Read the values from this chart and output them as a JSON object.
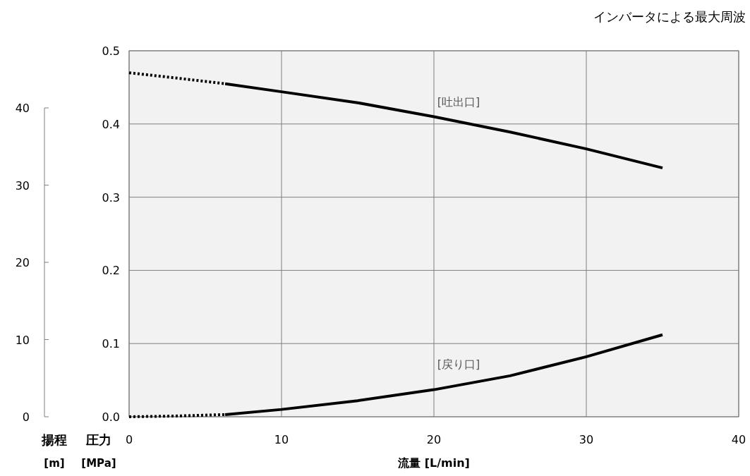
{
  "chart_data": {
    "type": "line",
    "xlabel": "流量 [L/min]",
    "ylabel": "圧力 [MPa]",
    "y2label": "揚程 [m]",
    "annotations": [
      "インバータによる最大周波",
      "[吐出口]",
      "[戻り口]"
    ],
    "xlim": [
      0,
      40
    ],
    "xticks": [
      0,
      10,
      20,
      30,
      40
    ],
    "ylim": [
      0,
      0.5
    ],
    "yticks": [
      {
        "value": 0,
        "label": "0.0"
      },
      0.1,
      0.2,
      0.3,
      0.4,
      0.5
    ],
    "y2lim": [
      0,
      47.4
    ],
    "y2ticks": [
      0,
      10,
      20,
      30,
      40
    ],
    "grid": true,
    "series": [
      {
        "color": "#000000",
        "line_style": "dotted",
        "x": [
          0,
          3,
          6.3
        ],
        "values": [
          0.47,
          0.463,
          0.455
        ]
      },
      {
        "color": "#000000",
        "line_style": "solid",
        "x": [
          6.3,
          10,
          15,
          20,
          25,
          30,
          35
        ],
        "values": [
          0.455,
          0.444,
          0.429,
          0.41,
          0.389,
          0.366,
          0.34
        ]
      },
      {
        "color": "#000000",
        "line_style": "dotted",
        "x": [
          0,
          3,
          6.3
        ],
        "values": [
          0,
          0.001,
          0.003
        ]
      },
      {
        "color": "#000000",
        "line_style": "solid",
        "x": [
          6.3,
          10,
          15,
          20,
          25,
          30,
          35
        ],
        "values": [
          0.003,
          0.01,
          0.022,
          0.037,
          0.056,
          0.082,
          0.112
        ]
      }
    ]
  }
}
